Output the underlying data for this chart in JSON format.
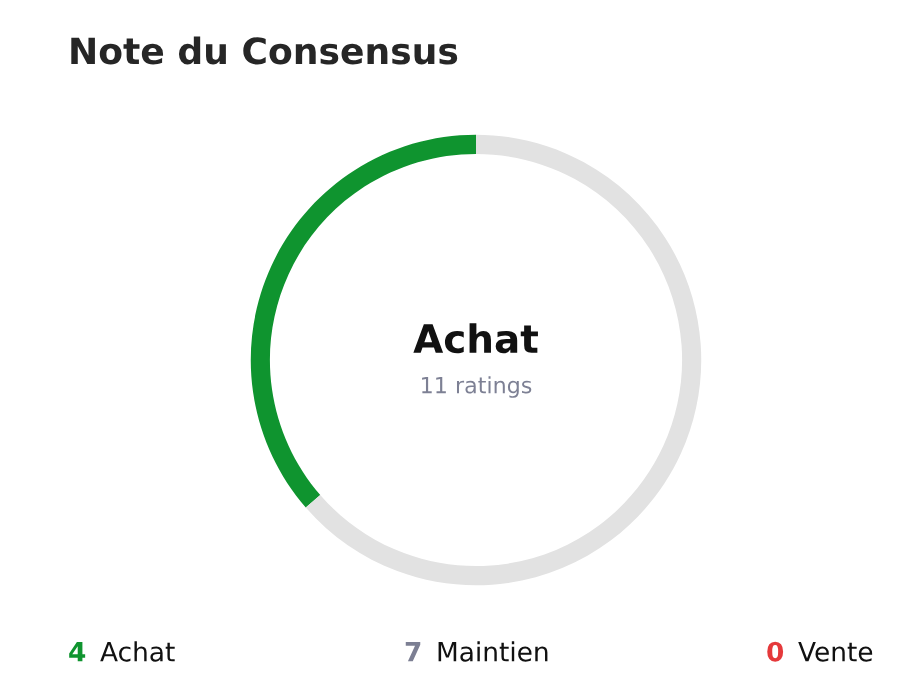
{
  "chart_data": {
    "type": "donut",
    "title": "Note du Consensus",
    "categories": [
      "Achat",
      "Maintien",
      "Vente"
    ],
    "values": [
      4,
      7,
      0
    ],
    "colors": [
      "#0f942f",
      "#e2e2e2",
      "#e5393b"
    ],
    "value_labels": [
      "4",
      "7",
      "0"
    ],
    "annotations": [
      "Achat",
      "11 ratings"
    ]
  }
}
